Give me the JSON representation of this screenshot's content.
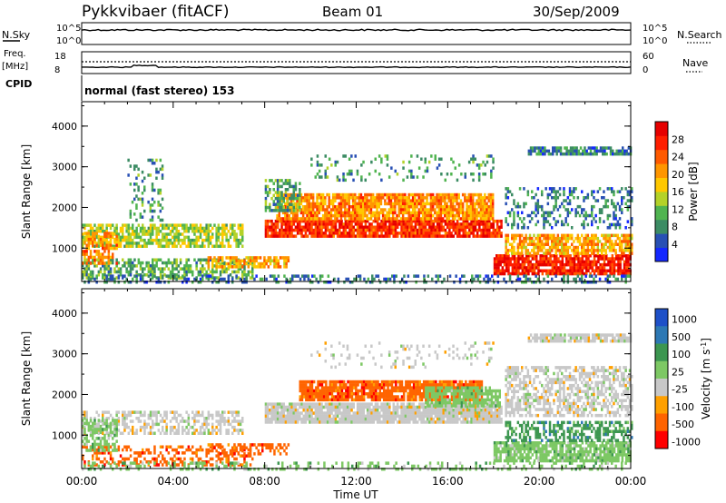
{
  "header": {
    "station": "Pykkvibaer (fitACF)",
    "beam": "Beam 01",
    "date": "30/Sep/2009"
  },
  "nsky_panel": {
    "left_label": "N.Sky",
    "right_label": "N.Search",
    "left_ticks": [
      "10^5",
      "10^0"
    ],
    "right_ticks": [
      "10^5",
      "10^0"
    ]
  },
  "freq_panel": {
    "left_label_1": "Freq.",
    "left_label_2": "[MHz]",
    "right_label": "Nave",
    "left_ticks": [
      "18",
      "8"
    ],
    "right_ticks": [
      "60",
      "0"
    ]
  },
  "cpid": {
    "label": "CPID",
    "mode": "normal (fast stereo) 153"
  },
  "x_axis": {
    "title": "Time UT",
    "ticks": [
      "00:00",
      "04:00",
      "08:00",
      "12:00",
      "16:00",
      "20:00",
      "00:00"
    ]
  },
  "chart_data": [
    {
      "type": "heatmap",
      "panel": "power",
      "ylabel": "Slant Range [km]",
      "ylim": [
        180,
        4600
      ],
      "yticks": [
        1000,
        2000,
        3000,
        4000
      ],
      "xlim_hours": [
        0,
        24
      ],
      "colorbar": {
        "label": "Power [dB]",
        "ticks": [
          "4",
          "8",
          "12",
          "16",
          "20",
          "24",
          "28"
        ],
        "colors": [
          "#1428ff",
          "#2850b4",
          "#3c8c64",
          "#50b450",
          "#b4d228",
          "#ffc800",
          "#ff9600",
          "#ff5a00",
          "#ff1e00",
          "#e60000"
        ]
      },
      "regions": [
        {
          "t0": 0.0,
          "t1": 7.0,
          "r0": 1050,
          "r1": 1600,
          "value": 14,
          "density": 0.7
        },
        {
          "t0": 0.0,
          "t1": 7.5,
          "r0": 280,
          "r1": 750,
          "value": 10,
          "density": 0.55
        },
        {
          "t0": 0.0,
          "t1": 1.5,
          "r0": 600,
          "r1": 1400,
          "value": 22,
          "density": 0.6
        },
        {
          "t0": 2.0,
          "t1": 3.5,
          "r0": 1700,
          "r1": 3200,
          "value": 8,
          "density": 0.2
        },
        {
          "t0": 5.5,
          "t1": 9.0,
          "r0": 550,
          "r1": 800,
          "value": 20,
          "density": 0.7
        },
        {
          "t0": 8.0,
          "t1": 18.3,
          "r0": 1300,
          "r1": 1700,
          "value": 28,
          "density": 0.9
        },
        {
          "t0": 8.5,
          "t1": 18.0,
          "r0": 1750,
          "r1": 2350,
          "value": 22,
          "density": 0.85
        },
        {
          "t0": 8.0,
          "t1": 9.5,
          "r0": 1900,
          "r1": 2700,
          "value": 10,
          "density": 0.55
        },
        {
          "t0": 10.0,
          "t1": 18.0,
          "r0": 2700,
          "r1": 3300,
          "value": 8,
          "density": 0.18
        },
        {
          "t0": 18.0,
          "t1": 24.0,
          "r0": 350,
          "r1": 850,
          "value": 29,
          "density": 0.85
        },
        {
          "t0": 18.5,
          "t1": 24.0,
          "r0": 850,
          "r1": 1350,
          "value": 20,
          "density": 0.75
        },
        {
          "t0": 18.5,
          "t1": 24.0,
          "r0": 1500,
          "r1": 2500,
          "value": 6,
          "density": 0.3
        },
        {
          "t0": 19.5,
          "t1": 24.0,
          "r0": 3300,
          "r1": 3500,
          "value": 6,
          "density": 0.8
        },
        {
          "t0": 0.0,
          "t1": 24.0,
          "r0": 180,
          "r1": 350,
          "value": 6,
          "density": 0.35
        }
      ]
    },
    {
      "type": "heatmap",
      "panel": "velocity",
      "ylabel": "Slant Range [km]",
      "ylim": [
        180,
        4600
      ],
      "yticks": [
        1000,
        2000,
        3000,
        4000
      ],
      "xlim_hours": [
        0,
        24
      ],
      "colorbar": {
        "label": "Velocity [m s^-1]",
        "ticks": [
          "1000",
          "500",
          "100",
          "25",
          "-25",
          "-100",
          "-500",
          "-1000"
        ],
        "colors": [
          "#1e50c8",
          "#2d78b4",
          "#3c9650",
          "#7dc864",
          "#c8c8c8",
          "#ffa000",
          "#ff6400",
          "#ff0000"
        ]
      },
      "regions": [
        {
          "t0": 0.0,
          "t1": 7.0,
          "r0": 1050,
          "r1": 1600,
          "value": 0,
          "density": 0.55
        },
        {
          "t0": 0.0,
          "t1": 7.5,
          "r0": 280,
          "r1": 750,
          "value": -150,
          "density": 0.4
        },
        {
          "t0": 0.0,
          "t1": 1.5,
          "r0": 600,
          "r1": 1400,
          "value": 60,
          "density": 0.5
        },
        {
          "t0": 5.5,
          "t1": 9.0,
          "r0": 550,
          "r1": 800,
          "value": -300,
          "density": 0.5
        },
        {
          "t0": 8.0,
          "t1": 18.3,
          "r0": 1300,
          "r1": 1800,
          "value": 0,
          "density": 0.92
        },
        {
          "t0": 9.5,
          "t1": 17.5,
          "r0": 1850,
          "r1": 2350,
          "value": -400,
          "density": 0.85
        },
        {
          "t0": 15.0,
          "t1": 18.3,
          "r0": 1750,
          "r1": 2200,
          "value": 80,
          "density": 0.75
        },
        {
          "t0": 10.0,
          "t1": 18.0,
          "r0": 2700,
          "r1": 3300,
          "value": 0,
          "density": 0.15
        },
        {
          "t0": 18.0,
          "t1": 24.0,
          "r0": 350,
          "r1": 850,
          "value": 60,
          "density": 0.8
        },
        {
          "t0": 18.5,
          "t1": 24.0,
          "r0": 850,
          "r1": 1350,
          "value": 200,
          "density": 0.55
        },
        {
          "t0": 18.5,
          "t1": 24.0,
          "r0": 1500,
          "r1": 2700,
          "value": 0,
          "density": 0.55
        },
        {
          "t0": 19.5,
          "t1": 24.0,
          "r0": 3300,
          "r1": 3500,
          "value": 0,
          "density": 0.8
        },
        {
          "t0": 0.0,
          "t1": 24.0,
          "r0": 180,
          "r1": 350,
          "value": 30,
          "density": 0.3
        }
      ]
    }
  ]
}
